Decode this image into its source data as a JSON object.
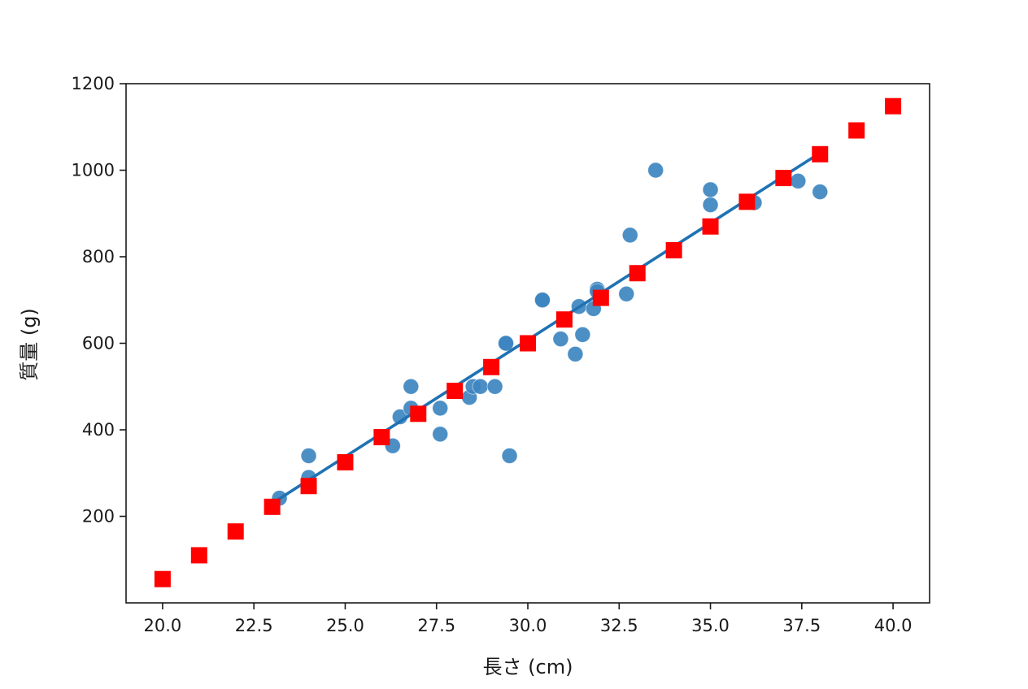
{
  "chart_data": {
    "type": "scatter",
    "xlabel": "長さ (cm)",
    "ylabel": "質量 (g)",
    "xlim": [
      19.0,
      41.0
    ],
    "ylim": [
      0,
      1200
    ],
    "xticks": [
      "20.0",
      "22.5",
      "25.0",
      "27.5",
      "30.0",
      "32.5",
      "35.0",
      "37.5",
      "40.0"
    ],
    "yticks": [
      "200",
      "400",
      "600",
      "800",
      "1000",
      "1200"
    ],
    "grid": false,
    "colors": {
      "scatter": "#3d85c0",
      "line": "#1f72b3",
      "markers": "#ff0000"
    },
    "series": [
      {
        "kind": "scatter",
        "x": [
          23.2,
          24.0,
          24.0,
          26.3,
          26.5,
          26.8,
          26.8,
          27.6,
          27.6,
          28.4,
          28.5,
          28.7,
          29.1,
          29.4,
          29.4,
          29.5,
          30.4,
          30.4,
          30.9,
          31.3,
          31.4,
          31.5,
          31.8,
          31.9,
          31.9,
          32.7,
          32.8,
          33.5,
          35.0,
          35.0,
          36.2,
          37.4,
          38.0
        ],
        "y": [
          242,
          290,
          340,
          363,
          430,
          450,
          500,
          390,
          450,
          475,
          500,
          500,
          500,
          600,
          600,
          340,
          700,
          700,
          610,
          575,
          685,
          620,
          680,
          725,
          720,
          714,
          850,
          1000,
          920,
          955,
          925,
          975,
          950
        ]
      },
      {
        "kind": "line",
        "x": [
          23.0,
          38.0
        ],
        "y": [
          230,
          1040
        ]
      },
      {
        "kind": "square-markers",
        "x": [
          20,
          21,
          22,
          23,
          24,
          25,
          26,
          27,
          28,
          29,
          30,
          31,
          32,
          33,
          34,
          35,
          36,
          37,
          38,
          39,
          40
        ],
        "y": [
          55,
          110,
          165,
          222,
          270,
          325,
          383,
          437,
          490,
          545,
          600,
          655,
          705,
          762,
          815,
          870,
          927,
          982,
          1037,
          1092,
          1148
        ]
      }
    ]
  }
}
